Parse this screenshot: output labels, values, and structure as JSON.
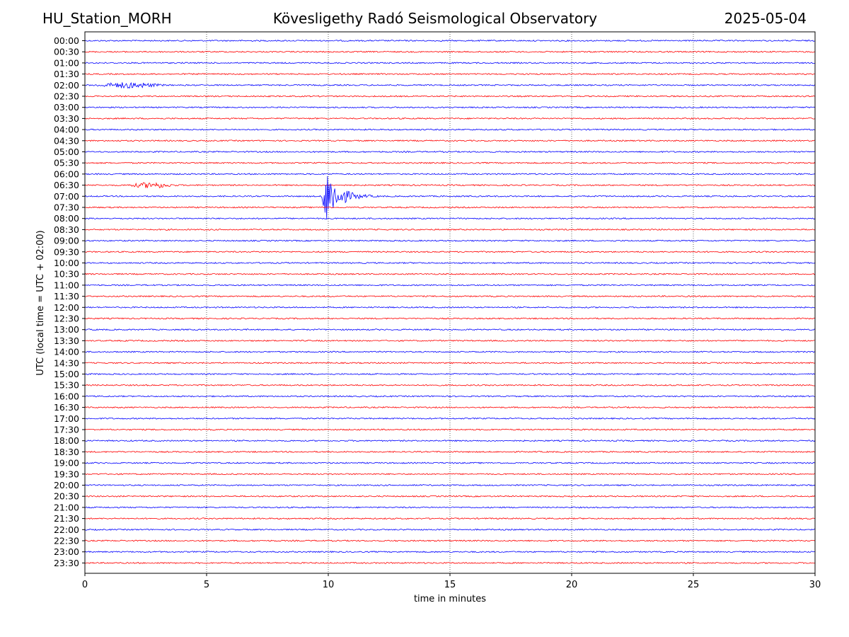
{
  "header": {
    "station": "HU_Station_MORH",
    "observatory": "Kövesligethy Radó Seismological Observatory",
    "date": "2025-05-04"
  },
  "chart_data": {
    "type": "line",
    "title": "Kövesligethy Radó Seismological Observatory",
    "xlabel": "time in minutes",
    "ylabel": "UTC (local time = UTC + 02:00)",
    "xlim": [
      0,
      30
    ],
    "x_ticks": [
      0,
      5,
      10,
      15,
      20,
      25,
      30
    ],
    "grid": "vertical dotted",
    "trace_colors": [
      "#0000ff",
      "#ff0000"
    ],
    "rows": [
      "00:00",
      "00:30",
      "01:00",
      "01:30",
      "02:00",
      "02:30",
      "03:00",
      "03:30",
      "04:00",
      "04:30",
      "05:00",
      "05:30",
      "06:00",
      "06:30",
      "07:00",
      "07:30",
      "08:00",
      "08:30",
      "09:00",
      "09:30",
      "10:00",
      "10:30",
      "11:00",
      "11:30",
      "12:00",
      "12:30",
      "13:00",
      "13:30",
      "14:00",
      "14:30",
      "15:00",
      "15:30",
      "16:00",
      "16:30",
      "17:00",
      "17:30",
      "18:00",
      "18:30",
      "19:00",
      "19:30",
      "20:00",
      "20:30",
      "21:00",
      "21:30",
      "22:00",
      "22:30",
      "23:00",
      "23:30"
    ],
    "events": [
      {
        "row": "07:00",
        "start_min": 9.7,
        "peak_min": 9.9,
        "end_min": 13.0,
        "type": "earthquake"
      },
      {
        "row": "06:30",
        "start_min": 1.5,
        "peak_min": 3.0,
        "end_min": 4.0,
        "type": "noise burst"
      },
      {
        "row": "02:00",
        "start_min": 0.0,
        "peak_min": 3.3,
        "end_min": 3.6,
        "type": "noise burst"
      }
    ]
  }
}
